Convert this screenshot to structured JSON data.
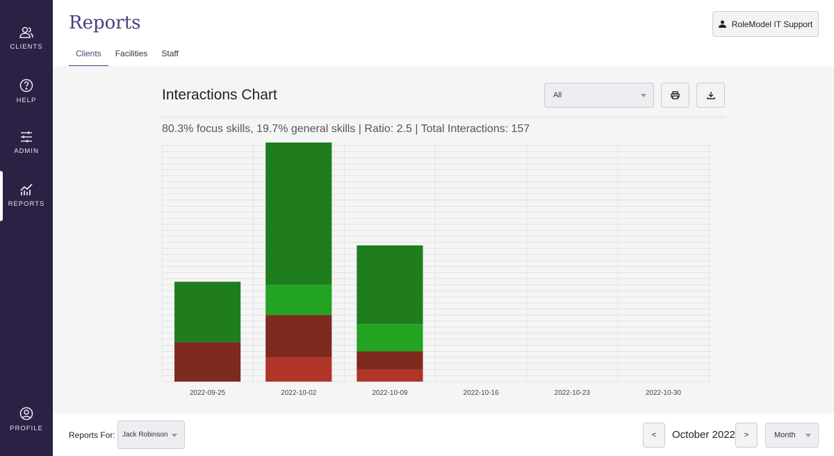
{
  "sidebar": {
    "items": [
      {
        "label": "CLIENTS",
        "icon": "users-icon"
      },
      {
        "label": "HELP",
        "icon": "question-icon"
      },
      {
        "label": "ADMIN",
        "icon": "sliders-icon"
      },
      {
        "label": "REPORTS",
        "icon": "chart-icon",
        "active": true
      },
      {
        "label": "PROFILE",
        "icon": "user-circle-icon"
      }
    ]
  },
  "header": {
    "title": "Reports",
    "tabs": [
      {
        "label": "Clients",
        "active": true
      },
      {
        "label": "Facilities"
      },
      {
        "label": "Staff"
      }
    ],
    "user_button": "RoleModel IT Support"
  },
  "chart_panel": {
    "title": "Interactions Chart",
    "filter": "All",
    "summary": "80.3% focus skills, 19.7% general skills | Ratio: 2.5 | Total Interactions: 157"
  },
  "footer": {
    "reports_for_label": "Reports For:",
    "reports_for_value": "Jack Robinson",
    "prev": "<",
    "next": ">",
    "period": "October 2022",
    "range": "Month"
  },
  "chart_data": {
    "type": "bar",
    "stacked": true,
    "categories": [
      "2022-09-25",
      "2022-10-02",
      "2022-10-09",
      "2022-10-16",
      "2022-10-23",
      "2022-10-30"
    ],
    "series": [
      {
        "name": "general-negative",
        "color": "#b03428",
        "values": [
          0,
          8,
          4,
          0,
          0,
          0
        ]
      },
      {
        "name": "focus-negative",
        "color": "#7e2a1e",
        "values": [
          13,
          14,
          6,
          0,
          0,
          0
        ]
      },
      {
        "name": "general-positive",
        "color": "#22a322",
        "values": [
          0,
          10,
          9,
          0,
          0,
          0
        ]
      },
      {
        "name": "focus-positive",
        "color": "#1f7d1e",
        "values": [
          20,
          47,
          26,
          0,
          0,
          0
        ]
      }
    ],
    "ylim": [
      0,
      79
    ],
    "yticks": [
      0,
      4,
      8,
      12,
      16,
      20,
      24,
      28,
      32,
      36,
      40,
      44,
      48,
      52,
      56,
      60,
      64,
      68,
      72,
      76
    ],
    "y_axis_side": "right",
    "grid": true
  }
}
